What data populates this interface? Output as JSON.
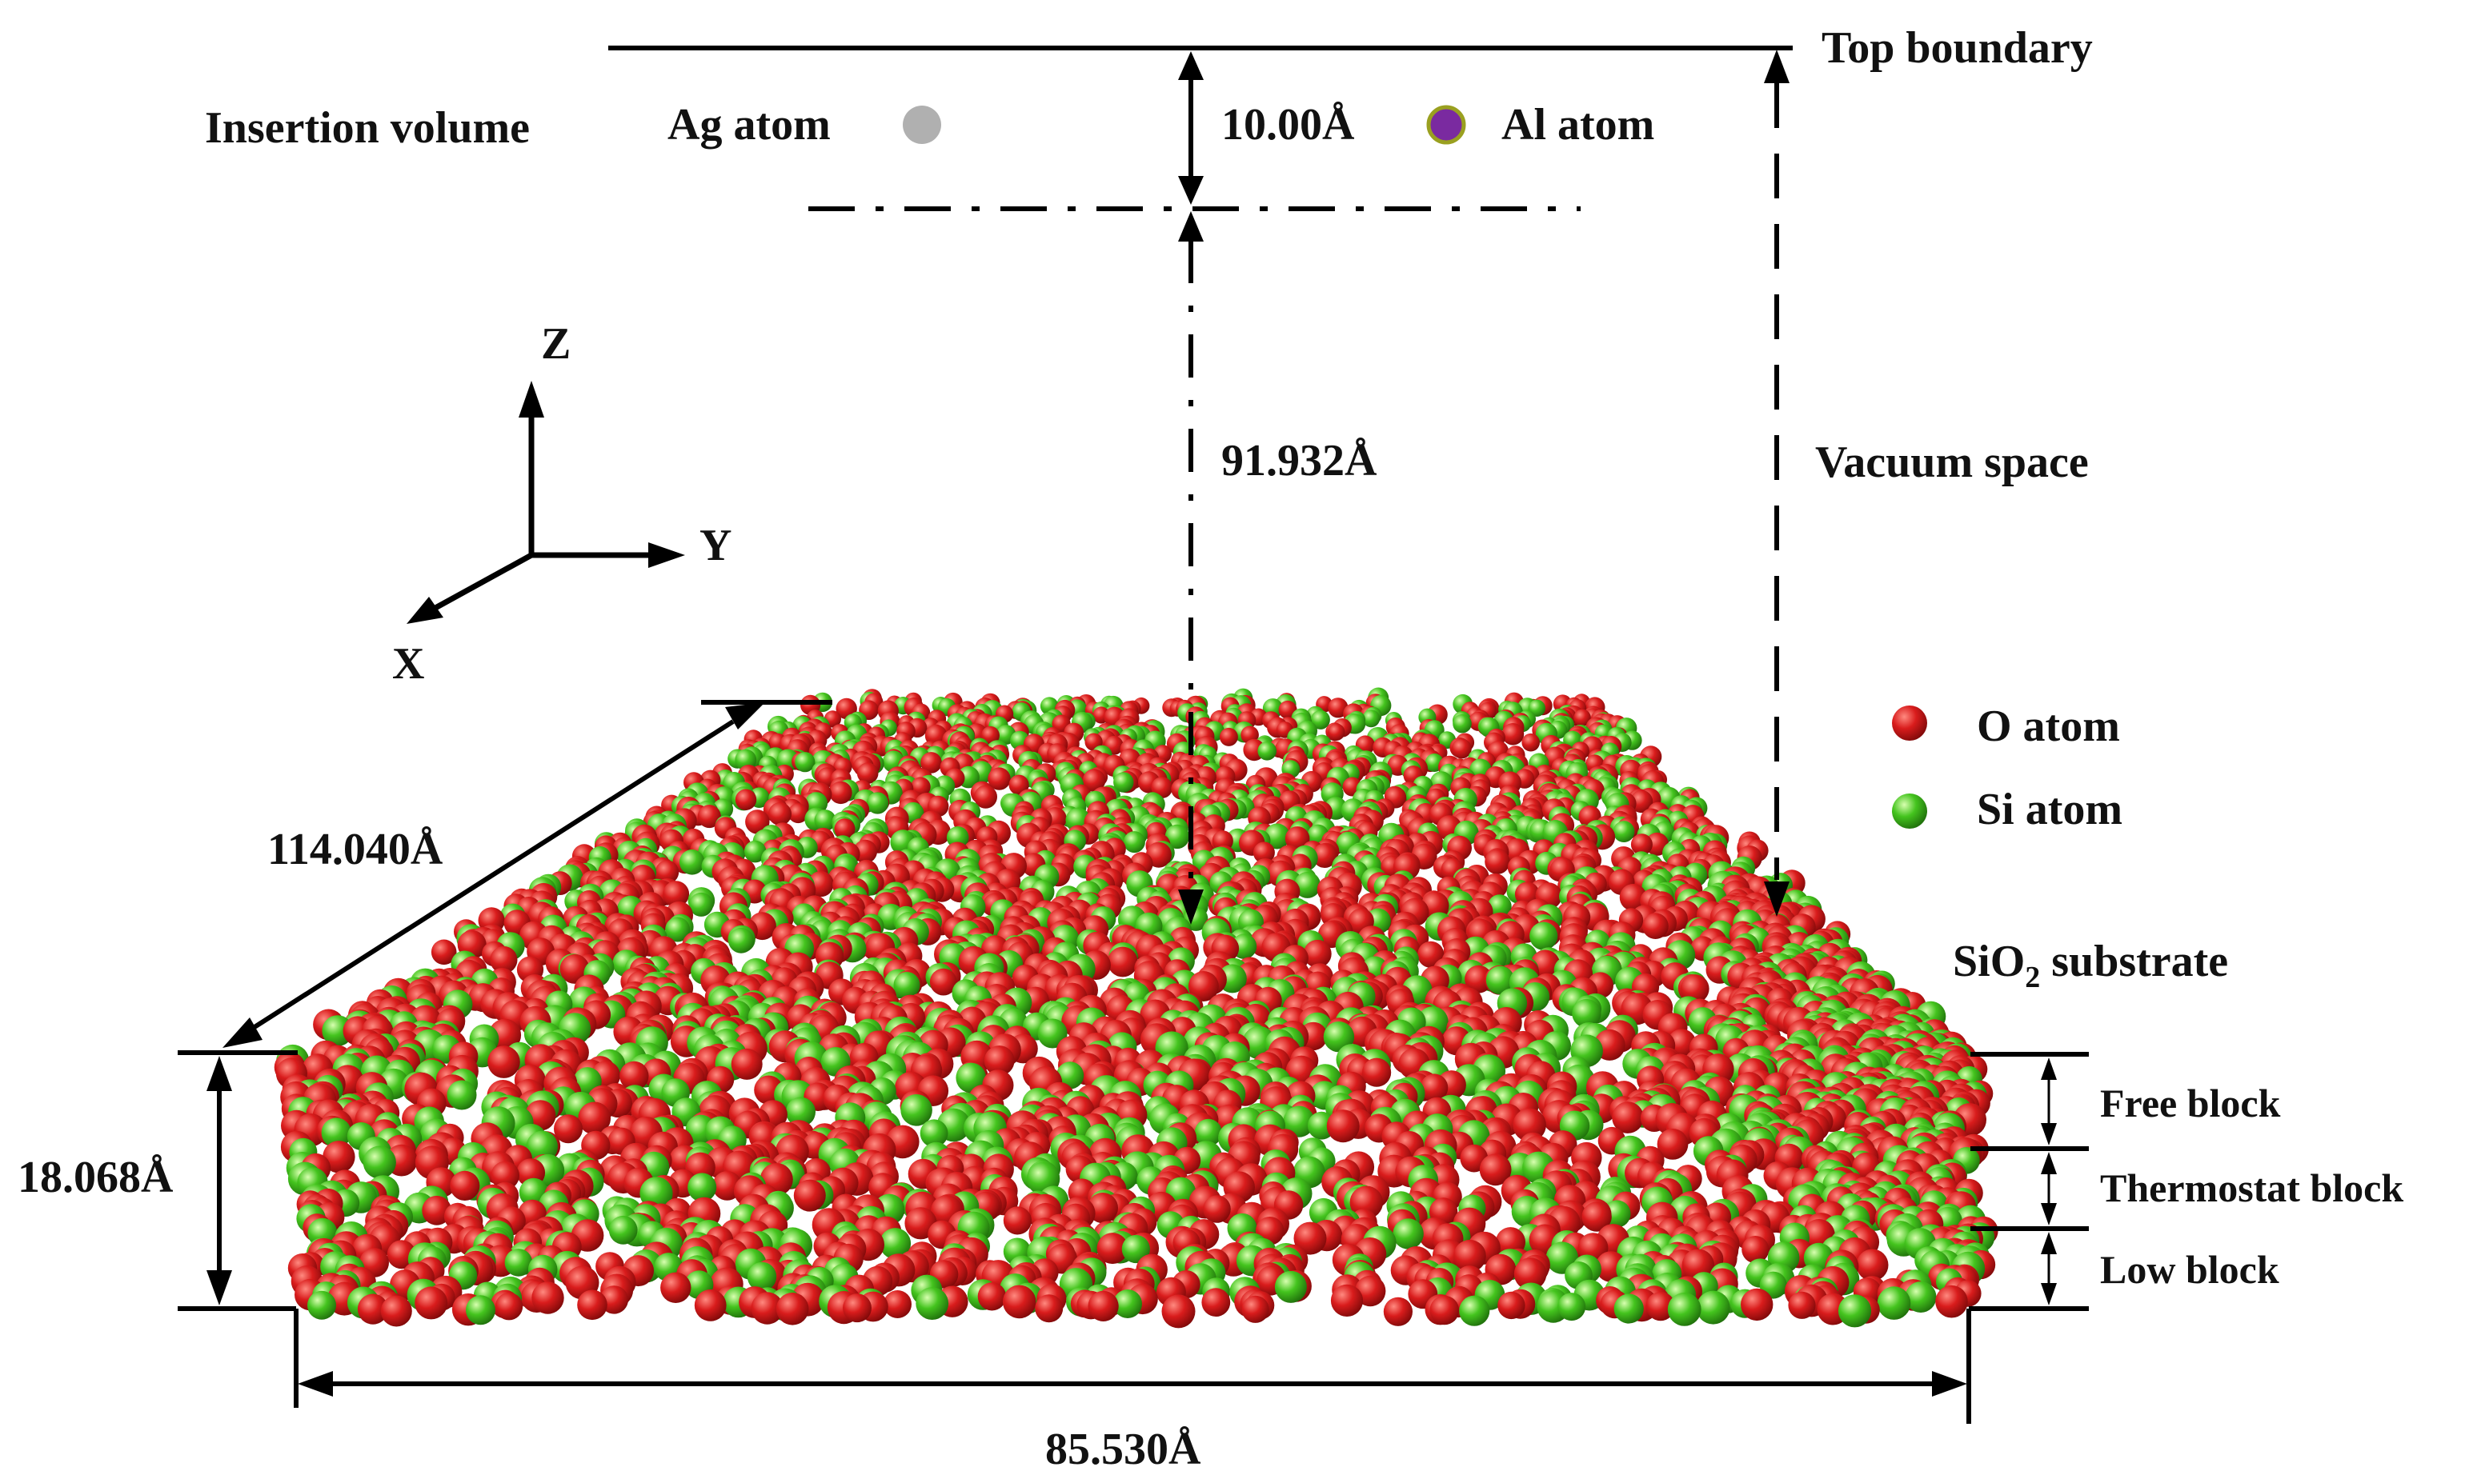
{
  "labels": {
    "top_boundary": "Top boundary",
    "insertion_volume": "Insertion volume",
    "ag_atom": "Ag atom",
    "al_atom": "Al atom",
    "insertion_height": "10.00Å",
    "vacuum_height": "91.932Å",
    "vacuum_space": "Vacuum space",
    "axis_z": "Z",
    "axis_y": "Y",
    "axis_x": "X",
    "o_atom": "O atom",
    "si_atom": "Si atom",
    "substrate_prefix": "SiO",
    "substrate_sub": "2",
    "substrate_suffix": " substrate",
    "depth_dim": "114.040Å",
    "height_dim": "18.068Å",
    "width_dim": "85.530Å",
    "free_block": "Free block",
    "thermostat_block": "Thermostat block",
    "low_block": "Low block"
  },
  "colors": {
    "ag_atom": "#b0b0b0",
    "al_atom": "#7a2aa0",
    "al_atom_ring": "#9aa020",
    "o_atom": "#d41a1a",
    "si_atom": "#3cc01e"
  }
}
